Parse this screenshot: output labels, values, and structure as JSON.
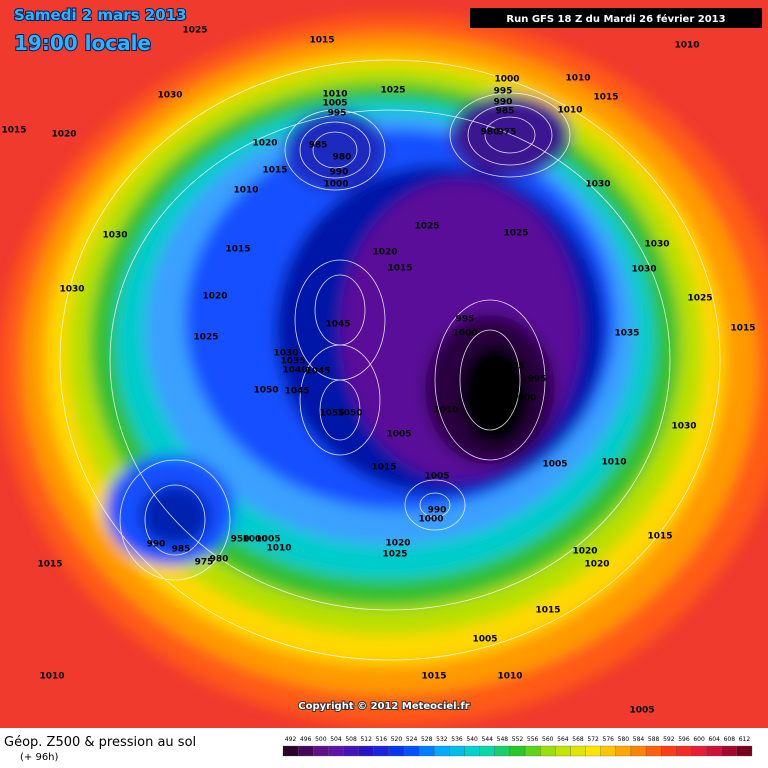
{
  "header": {
    "date": "Samedi 2 mars 2013",
    "time": "19:00 locale",
    "run": "Run GFS 18 Z du Mardi 26 février 2013"
  },
  "copyright": "Copyright © 2012 Meteociel.fr",
  "legend": {
    "title": "Géop. Z500 & pression au sol",
    "lead": "(+ 96h)"
  },
  "colorbar": {
    "ticks": [
      492,
      496,
      500,
      504,
      508,
      512,
      516,
      520,
      524,
      528,
      532,
      536,
      540,
      544,
      548,
      552,
      556,
      560,
      564,
      568,
      572,
      576,
      580,
      584,
      588,
      592,
      596,
      600,
      604,
      608,
      612
    ]
  },
  "isobar_labels": [
    1025,
    1015,
    1030,
    1015,
    1020,
    1010,
    1005,
    995,
    985,
    980,
    990,
    1000,
    1020,
    1015,
    1010,
    1025,
    1000,
    995,
    990,
    985,
    980,
    975,
    1010,
    1015,
    1010,
    1010,
    1030,
    1025,
    1025,
    1020,
    1015,
    1030,
    1015,
    1030,
    1030,
    1025,
    1020,
    1030,
    1025,
    1045,
    1035,
    1015,
    995,
    1000,
    1030,
    1035,
    1040,
    1045,
    1050,
    1045,
    1005,
    995,
    1000,
    1010,
    1055,
    1050,
    1005,
    1030,
    1015,
    1005,
    1005,
    1010,
    990,
    1000,
    990,
    985,
    975,
    980,
    950,
    1000,
    1005,
    1010,
    1020,
    1025,
    1015,
    1020,
    1020,
    1015,
    1015,
    1005,
    1010,
    1015,
    1010,
    1005
  ]
}
